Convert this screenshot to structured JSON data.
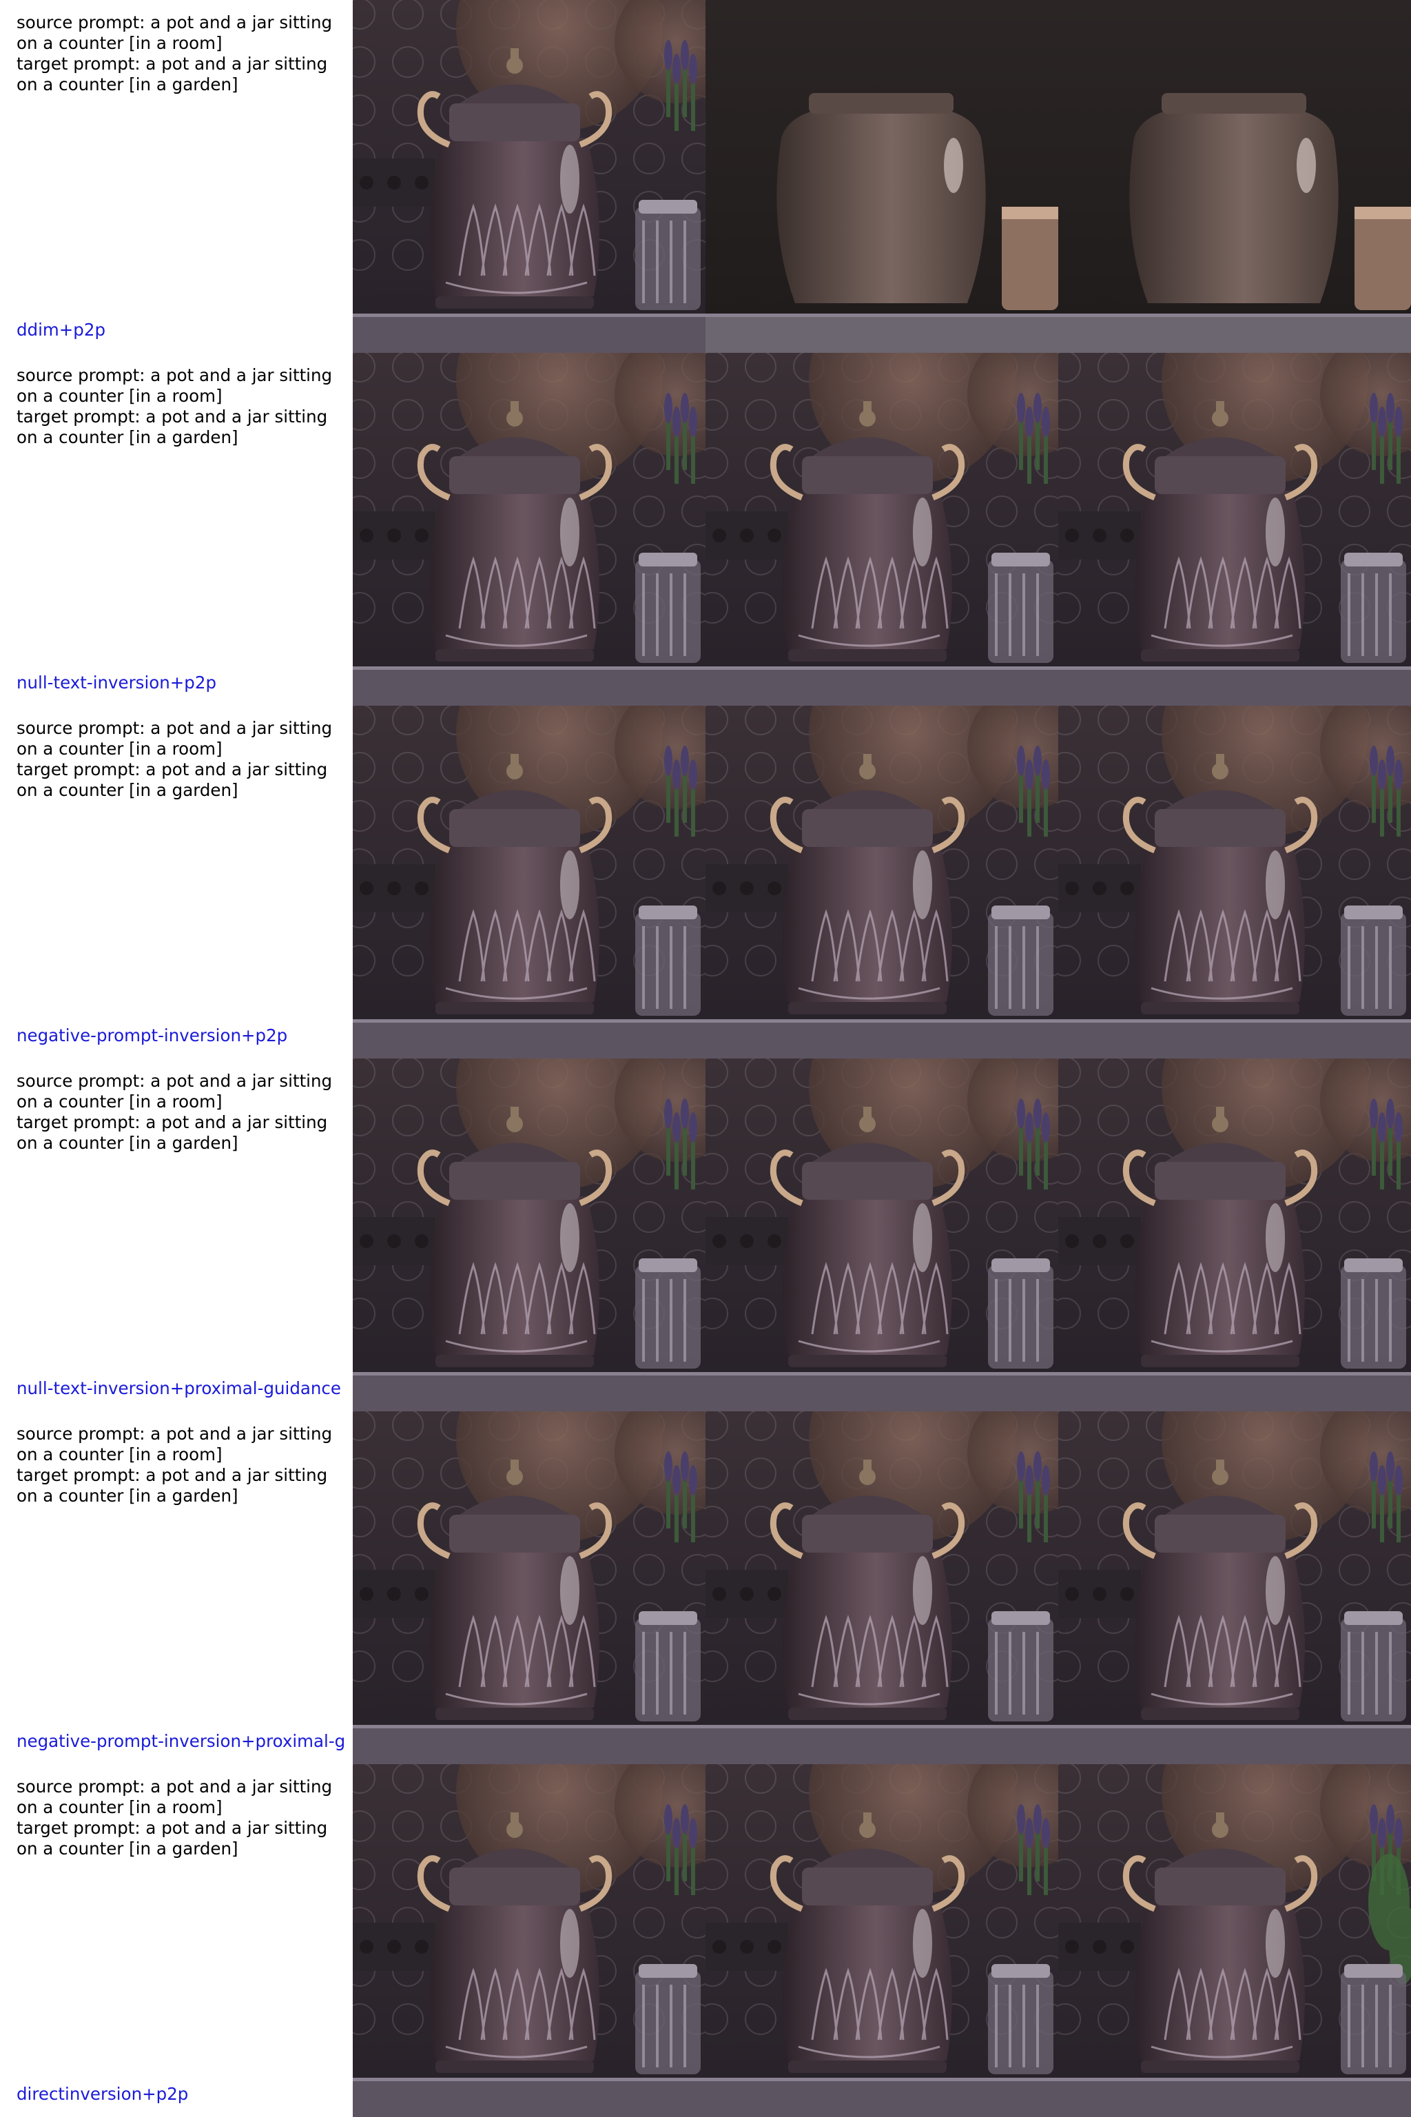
{
  "rows": [
    {
      "source_prompt": [
        "source prompt: a pot and a jar sitting",
        "on a counter [in a room]"
      ],
      "target_prompt": [
        "target prompt: a pot and a jar sitting",
        "on a counter [in a garden]"
      ],
      "method": "ddim+p2p"
    },
    {
      "source_prompt": [
        "source prompt: a pot and a jar sitting",
        "on a counter [in a room]"
      ],
      "target_prompt": [
        "target prompt: a pot and a jar sitting",
        "on a counter [in a garden]"
      ],
      "method": "null-text-inversion+p2p"
    },
    {
      "source_prompt": [
        "source prompt: a pot and a jar sitting",
        "on a counter [in a room]"
      ],
      "target_prompt": [
        "target prompt: a pot and a jar sitting",
        "on a counter [in a garden]"
      ],
      "method": "negative-prompt-inversion+p2p"
    },
    {
      "source_prompt": [
        "source prompt: a pot and a jar sitting",
        "on a counter [in a room]"
      ],
      "target_prompt": [
        "target prompt: a pot and a jar sitting",
        "on a counter [in a garden]"
      ],
      "method": "null-text-inversion+proximal-guidance"
    },
    {
      "source_prompt": [
        "source prompt: a pot and a jar sitting",
        "on a counter [in a room]"
      ],
      "target_prompt": [
        "target prompt: a pot and a jar sitting",
        "on a counter [in a garden]"
      ],
      "method": "negative-prompt-inversion+proximal-g"
    },
    {
      "source_prompt": [
        "source prompt: a pot and a jar sitting",
        "on a counter [in a room]"
      ],
      "target_prompt": [
        "target prompt: a pot and a jar sitting",
        "on a counter [in a garden]"
      ],
      "method": "directinversion+p2p"
    }
  ],
  "image_kinds": [
    [
      "source-image",
      "edited-image",
      "edited-image"
    ],
    [
      "source-image",
      "edited-image",
      "edited-image"
    ],
    [
      "source-image",
      "edited-image",
      "edited-image"
    ],
    [
      "source-image",
      "edited-image",
      "edited-image"
    ],
    [
      "source-image",
      "edited-image",
      "edited-image"
    ],
    [
      "source-image",
      "edited-image",
      "edited-image"
    ]
  ],
  "colors": {
    "method_label": "#1a1ad9",
    "prompt_text": "#000000"
  }
}
